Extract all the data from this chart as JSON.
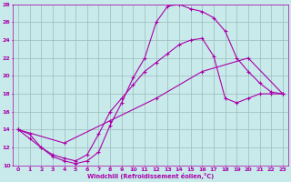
{
  "xlabel": "Windchill (Refroidissement éolien,°C)",
  "xlim": [
    -0.5,
    23.5
  ],
  "ylim": [
    10,
    28
  ],
  "yticks": [
    10,
    12,
    14,
    16,
    18,
    20,
    22,
    24,
    26,
    28
  ],
  "xticks": [
    0,
    1,
    2,
    3,
    4,
    5,
    6,
    7,
    8,
    9,
    10,
    11,
    12,
    13,
    14,
    15,
    16,
    17,
    18,
    19,
    20,
    21,
    22,
    23
  ],
  "bg_color": "#c8eaea",
  "line_color": "#aa00aa",
  "grid_color": "#99bbbb",
  "curve1_x": [
    0,
    1,
    2,
    3,
    4,
    5,
    6,
    7,
    8,
    9,
    10,
    11,
    12,
    13,
    14,
    15,
    16,
    17,
    18,
    19,
    20,
    21,
    22,
    23
  ],
  "curve1_y": [
    14.0,
    13.0,
    12.0,
    11.0,
    10.5,
    10.2,
    10.5,
    11.5,
    14.5,
    17.0,
    19.8,
    22.0,
    26.0,
    27.8,
    28.0,
    27.5,
    27.2,
    26.5,
    25.0,
    22.0,
    20.5,
    19.2,
    18.2,
    18.0
  ],
  "curve2_x": [
    0,
    1,
    2,
    3,
    4,
    5,
    6,
    7,
    8,
    9,
    10,
    11,
    12,
    13,
    14,
    15,
    16,
    17,
    18,
    19,
    20,
    21,
    22,
    23
  ],
  "curve2_y": [
    14.0,
    13.5,
    12.0,
    11.2,
    10.8,
    10.5,
    11.2,
    13.5,
    16.0,
    17.5,
    19.0,
    20.5,
    21.5,
    22.5,
    23.5,
    24.0,
    24.2,
    22.2,
    17.5,
    17.0,
    17.5,
    18.0,
    18.0,
    18.0
  ],
  "curve3_x": [
    0,
    4,
    8,
    12,
    16,
    20,
    23
  ],
  "curve3_y": [
    14.0,
    12.5,
    15.0,
    17.5,
    20.5,
    22.0,
    18.0
  ]
}
